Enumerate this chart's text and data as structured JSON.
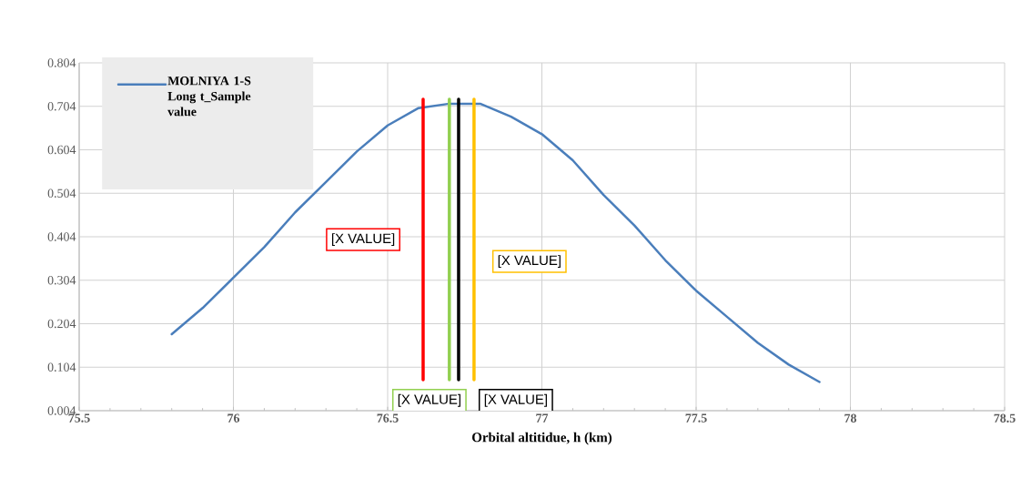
{
  "chart_data": {
    "type": "line",
    "xlabel": "Orbital altitidue, h (km)",
    "xlim": [
      75.5,
      78.5
    ],
    "xticks": [
      75.5,
      76,
      76.5,
      77,
      77.5,
      78,
      78.5
    ],
    "ylim": [
      0.004,
      0.804
    ],
    "yticks": [
      0.004,
      0.104,
      0.204,
      0.304,
      0.404,
      0.504,
      0.604,
      0.704,
      0.804
    ],
    "grid": true,
    "legend": "top left",
    "marker": "none",
    "line_style": "solid",
    "series": [
      {
        "name": "**MOLNIYA 1-S Long t_Sample value**",
        "color": "#4a7ebb",
        "x": [
          75.8,
          75.9,
          76.0,
          76.1,
          76.2,
          76.3,
          76.4,
          76.5,
          76.6,
          76.7,
          76.8,
          76.9,
          77.0,
          77.1,
          77.2,
          77.3,
          77.4,
          77.5,
          77.6,
          77.7,
          77.8,
          77.9
        ],
        "values": [
          0.18,
          0.24,
          0.31,
          0.38,
          0.46,
          0.53,
          0.6,
          0.66,
          0.7,
          0.71,
          0.71,
          0.68,
          0.64,
          0.58,
          0.5,
          0.43,
          0.35,
          0.28,
          0.22,
          0.16,
          0.11,
          0.07
        ]
      },
      {
        "color": "#ff0000",
        "x": [
          76.615,
          76.615
        ],
        "values": [
          0.075,
          0.72
        ]
      },
      {
        "color": "#92d050",
        "x": [
          76.7,
          76.7
        ],
        "values": [
          0.075,
          0.72
        ]
      },
      {
        "color": "#000000",
        "x": [
          76.73,
          76.73
        ],
        "values": [
          0.075,
          0.72
        ]
      },
      {
        "color": "#ffc000",
        "x": [
          76.78,
          76.78
        ],
        "values": [
          0.075,
          0.72
        ]
      }
    ],
    "annotations": [
      "[X VALUE]",
      "[X VALUE]",
      "[X VALUE]",
      "[X VALUE]"
    ]
  }
}
